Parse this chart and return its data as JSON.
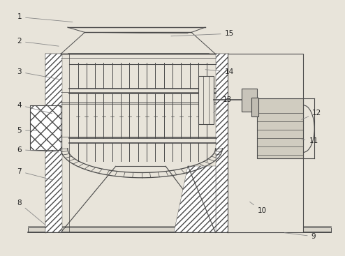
{
  "bg_color": "#e8e4da",
  "line_color": "#4a4a4a",
  "label_color": "#222222",
  "figsize": [
    4.94,
    3.67
  ],
  "dpi": 100,
  "annotations": [
    [
      1,
      0.055,
      0.935,
      0.215,
      0.915
    ],
    [
      2,
      0.055,
      0.84,
      0.175,
      0.82
    ],
    [
      3,
      0.055,
      0.72,
      0.175,
      0.69
    ],
    [
      4,
      0.055,
      0.59,
      0.155,
      0.555
    ],
    [
      5,
      0.055,
      0.49,
      0.115,
      0.49
    ],
    [
      6,
      0.055,
      0.415,
      0.175,
      0.405
    ],
    [
      7,
      0.055,
      0.33,
      0.155,
      0.295
    ],
    [
      8,
      0.055,
      0.205,
      0.135,
      0.115
    ],
    [
      9,
      0.91,
      0.075,
      0.82,
      0.09
    ],
    [
      10,
      0.76,
      0.175,
      0.72,
      0.215
    ],
    [
      11,
      0.91,
      0.45,
      0.87,
      0.455
    ],
    [
      12,
      0.92,
      0.56,
      0.87,
      0.53
    ],
    [
      13,
      0.66,
      0.61,
      0.615,
      0.555
    ],
    [
      14,
      0.665,
      0.72,
      0.59,
      0.73
    ],
    [
      15,
      0.665,
      0.87,
      0.49,
      0.86
    ]
  ]
}
